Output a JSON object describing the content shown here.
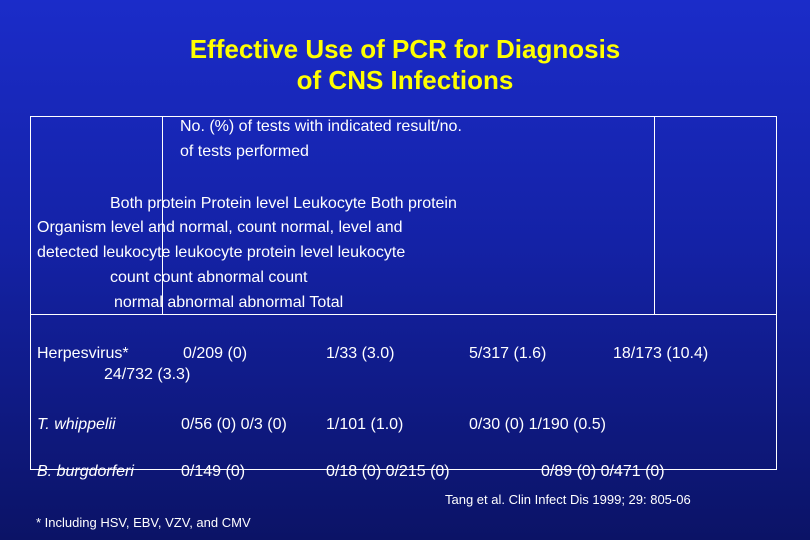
{
  "slide": {
    "title_line1": "Effective Use of PCR for Diagnosis",
    "title_line2": "of CNS Infections",
    "group_header": {
      "line1": "No. (%) of tests with indicated result/no.",
      "line2": "of tests performed"
    },
    "column_header_lines": [
      "Both protein      Protein level      Leukocyte              Both protein",
      "Organism              level and              normal,  count normal,      level and",
      "detected              leukocyte              leukocyte              protein level      leukocyte",
      "count      count      abnormal              count",
      "normal   abnormal                                abnormal              Total"
    ],
    "rows": [
      {
        "organism": "Herpesvirus*",
        "cells": [
          "0/209 (0)",
          "1/33 (3.0)",
          "5/317 (1.6)",
          "18/173 (10.4)"
        ],
        "total": "24/732 (3.3)"
      },
      {
        "organism": "T. whippelii",
        "cells": [
          "0/56 (0)  0/3 (0)",
          "1/101 (1.0)",
          "0/30 (0)  1/190 (0.5)"
        ]
      },
      {
        "organism": "B. burgdorferi",
        "cells": [
          "0/149 (0)",
          "0/18 (0)  0/215 (0)",
          "0/89 (0)  0/471 (0)"
        ]
      }
    ],
    "citation": "Tang et al. Clin Infect Dis 1999; 29: 805-06",
    "footnote": "* Including HSV, EBV, VZV, and CMV"
  }
}
